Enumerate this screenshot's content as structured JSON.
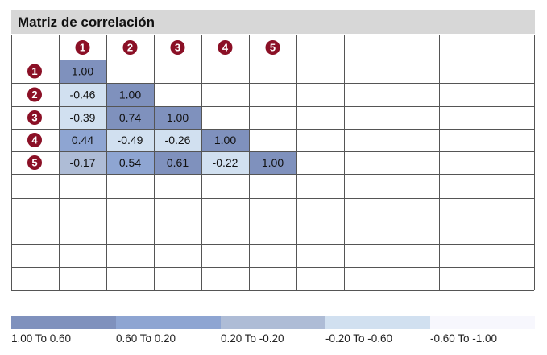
{
  "title": "Matriz de correlación",
  "colors": {
    "grid": "#555555",
    "badge": "#8b1026",
    "badge_text": "#ffffff",
    "header_bg": "#d7d7d7"
  },
  "chart_data": {
    "type": "heatmap",
    "title": "Matriz de correlación",
    "rows": [
      "1",
      "2",
      "3",
      "4",
      "5"
    ],
    "columns": [
      "1",
      "2",
      "3",
      "4",
      "5"
    ],
    "values": [
      [
        1.0
      ],
      [
        -0.46,
        1.0
      ],
      [
        -0.39,
        0.74,
        1.0
      ],
      [
        0.44,
        -0.49,
        -0.26,
        1.0
      ],
      [
        -0.17,
        0.54,
        0.61,
        -0.22,
        1.0
      ]
    ],
    "labels": [
      [
        "1.00"
      ],
      [
        "-0.46",
        "1.00"
      ],
      [
        "-0.39",
        "0.74",
        "1.00"
      ],
      [
        "0.44",
        "-0.49",
        "-0.26",
        "1.00"
      ],
      [
        "-0.17",
        "0.54",
        "0.61",
        "-0.22",
        "1.00"
      ]
    ],
    "legend": [
      {
        "label": "1.00 To 0.60",
        "min": 0.6,
        "max": 1.0,
        "color": "#7f91bd"
      },
      {
        "label": "0.60 To 0.20",
        "min": 0.2,
        "max": 0.6,
        "color": "#8ea5d2"
      },
      {
        "label": "0.20 To -0.20",
        "min": -0.2,
        "max": 0.2,
        "color": "#aebcd6"
      },
      {
        "label": "-0.20 To -0.60",
        "min": -0.6,
        "max": -0.2,
        "color": "#d1e0f0"
      },
      {
        "label": "-0.60 To -1.00",
        "min": -1.0,
        "max": -0.6,
        "color": "#f7f7fd"
      }
    ]
  }
}
